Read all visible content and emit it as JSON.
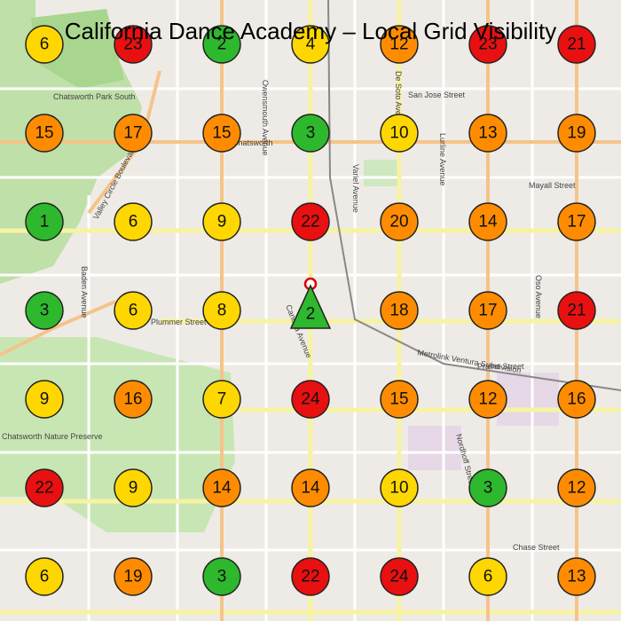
{
  "header": {
    "title": "California Dance Academy – Local Grid Visibility"
  },
  "map": {
    "labels": [
      "Owensmouth Avenue",
      "De Soto Avenue",
      "San Jose Street",
      "Chatsworth",
      "Variel Avenue",
      "Lurline Avenue",
      "Mayall Street",
      "Valley Circle Boulevard",
      "Chatsworth Park South",
      "Baden Avenue",
      "Plummer Street",
      "Canoga Avenue",
      "Oso Avenue",
      "Prairie Street",
      "Metrolink Ventura Subdivision",
      "Nordhoff Street",
      "Chase Street",
      "Chatsworth Nature Preserve"
    ]
  },
  "grid": {
    "rows": [
      [
        {
          "rank": 6,
          "color": "#ffd700"
        },
        {
          "rank": 23,
          "color": "#e81010"
        },
        {
          "rank": 2,
          "color": "#2db82d"
        },
        {
          "rank": 4,
          "color": "#ffd700"
        },
        {
          "rank": 12,
          "color": "#ff8c00"
        },
        {
          "rank": 23,
          "color": "#e81010"
        },
        {
          "rank": 21,
          "color": "#e81010"
        }
      ],
      [
        {
          "rank": 15,
          "color": "#ff8c00"
        },
        {
          "rank": 17,
          "color": "#ff8c00"
        },
        {
          "rank": 15,
          "color": "#ff8c00"
        },
        {
          "rank": 3,
          "color": "#2db82d"
        },
        {
          "rank": 10,
          "color": "#ffd700"
        },
        {
          "rank": 13,
          "color": "#ff8c00"
        },
        {
          "rank": 19,
          "color": "#ff8c00"
        }
      ],
      [
        {
          "rank": 1,
          "color": "#2db82d"
        },
        {
          "rank": 6,
          "color": "#ffd700"
        },
        {
          "rank": 9,
          "color": "#ffd700"
        },
        {
          "rank": 22,
          "color": "#e81010"
        },
        {
          "rank": 20,
          "color": "#ff8c00"
        },
        {
          "rank": 14,
          "color": "#ff8c00"
        },
        {
          "rank": 17,
          "color": "#ff8c00"
        }
      ],
      [
        {
          "rank": 3,
          "color": "#2db82d"
        },
        {
          "rank": 6,
          "color": "#ffd700"
        },
        {
          "rank": 8,
          "color": "#ffd700"
        },
        {
          "rank": 2,
          "color": "#2db82d",
          "shape": "triangle"
        },
        {
          "rank": 18,
          "color": "#ff8c00"
        },
        {
          "rank": 17,
          "color": "#ff8c00"
        },
        {
          "rank": 21,
          "color": "#e81010"
        }
      ],
      [
        {
          "rank": 9,
          "color": "#ffd700"
        },
        {
          "rank": 16,
          "color": "#ff8c00"
        },
        {
          "rank": 7,
          "color": "#ffd700"
        },
        {
          "rank": 24,
          "color": "#e81010"
        },
        {
          "rank": 15,
          "color": "#ff8c00"
        },
        {
          "rank": 12,
          "color": "#ff8c00"
        },
        {
          "rank": 16,
          "color": "#ff8c00"
        }
      ],
      [
        {
          "rank": 22,
          "color": "#e81010"
        },
        {
          "rank": 9,
          "color": "#ffd700"
        },
        {
          "rank": 14,
          "color": "#ff8c00"
        },
        {
          "rank": 14,
          "color": "#ff8c00"
        },
        {
          "rank": 10,
          "color": "#ffd700"
        },
        {
          "rank": 3,
          "color": "#2db82d"
        },
        {
          "rank": 12,
          "color": "#ff8c00"
        }
      ],
      [
        {
          "rank": 6,
          "color": "#ffd700"
        },
        {
          "rank": 19,
          "color": "#ff8c00"
        },
        {
          "rank": 3,
          "color": "#2db82d"
        },
        {
          "rank": 22,
          "color": "#e81010"
        },
        {
          "rank": 24,
          "color": "#e81010"
        },
        {
          "rank": 6,
          "color": "#ffd700"
        },
        {
          "rank": 13,
          "color": "#ff8c00"
        }
      ]
    ]
  }
}
